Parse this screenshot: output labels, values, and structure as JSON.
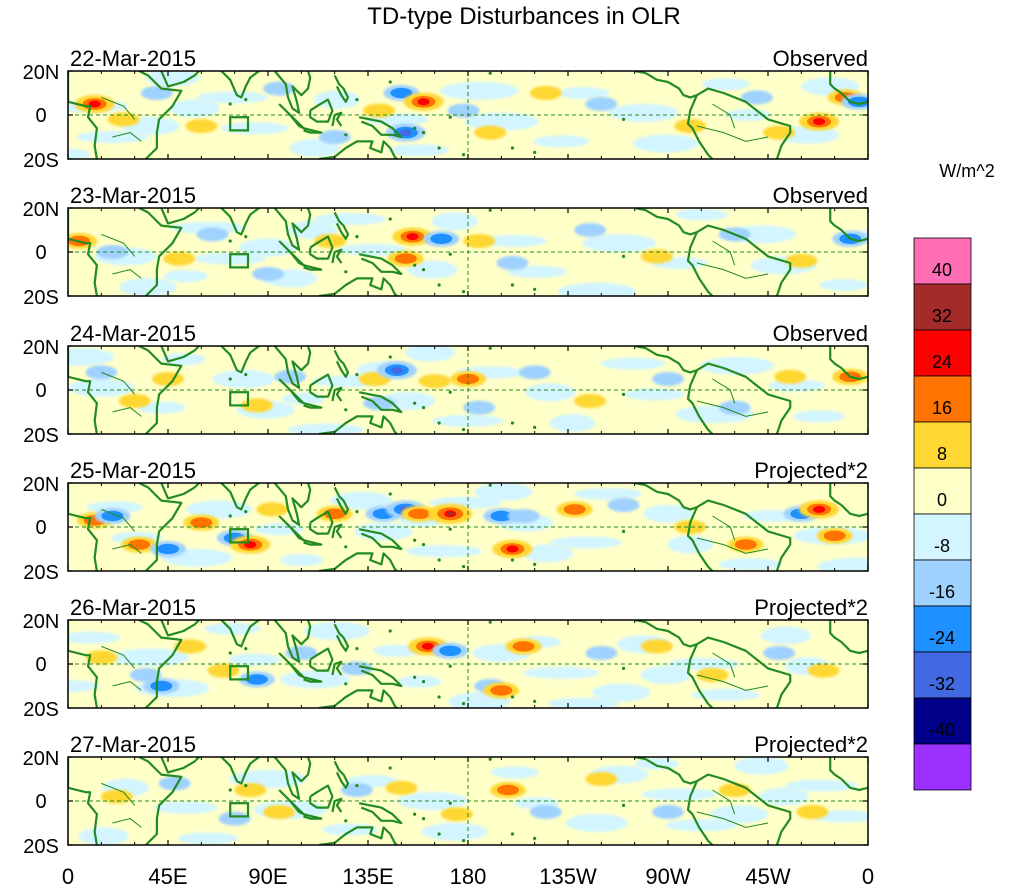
{
  "chart_data": {
    "type": "heatmap",
    "title": "TD-type Disturbances in OLR",
    "colorbar_title": "W/m^2",
    "colorbar_ticks": [
      "40",
      "32",
      "24",
      "16",
      "8",
      "0",
      "-8",
      "-16",
      "-24",
      "-32",
      "-40"
    ],
    "colorbar_levels": [
      {
        "color": "#ff6eb4"
      },
      {
        "color": "#a52a2a"
      },
      {
        "color": "#ff0000"
      },
      {
        "color": "#ff7300"
      },
      {
        "color": "#ffd732"
      },
      {
        "color": "#ffffc8"
      },
      {
        "color": "#d2f5ff"
      },
      {
        "color": "#a0d2ff"
      },
      {
        "color": "#1e90ff"
      },
      {
        "color": "#4169e1"
      },
      {
        "color": "#00008b"
      },
      {
        "color": "#9b30ff"
      }
    ],
    "colors": {
      "land": "#228b22",
      "blob_pos_1": "#ffd732",
      "blob_pos_2": "#ff7300",
      "blob_pos_3": "#ff0000",
      "blob_pos_4": "#a52a2a",
      "blob_neg_1": "#a0d2ff",
      "blob_neg_2": "#1e90ff",
      "blob_neg_3": "#4169e1",
      "blob_neg_4": "#00008b",
      "background_pos": "#ffffc8",
      "background_neg": "#d2f5ff"
    },
    "x_ticks": [
      {
        "label": "0",
        "lon": 0
      },
      {
        "label": "45E",
        "lon": 45
      },
      {
        "label": "90E",
        "lon": 90
      },
      {
        "label": "135E",
        "lon": 135
      },
      {
        "label": "180",
        "lon": 180
      },
      {
        "label": "135W",
        "lon": 225
      },
      {
        "label": "90W",
        "lon": 270
      },
      {
        "label": "45W",
        "lon": 315
      },
      {
        "label": "0",
        "lon": 360
      }
    ],
    "y_ticks": [
      {
        "label": "20N",
        "lat": 20
      },
      {
        "label": "0",
        "lat": 0
      },
      {
        "label": "20S",
        "lat": -20
      }
    ],
    "xlim": [
      0,
      360
    ],
    "ylim": [
      -20,
      20
    ],
    "panels": [
      {
        "date": "22-Mar-2015",
        "label": "Observed",
        "blobs": [
          {
            "lon": 12,
            "lat": 5,
            "v": 3
          },
          {
            "lon": 25,
            "lat": -2,
            "v": 1
          },
          {
            "lon": 40,
            "lat": 10,
            "v": -1
          },
          {
            "lon": 60,
            "lat": -5,
            "v": 1
          },
          {
            "lon": 95,
            "lat": 12,
            "v": -1
          },
          {
            "lon": 120,
            "lat": -10,
            "v": -1
          },
          {
            "lon": 150,
            "lat": 10,
            "v": -2
          },
          {
            "lon": 160,
            "lat": 6,
            "v": 3
          },
          {
            "lon": 152,
            "lat": -8,
            "v": -3
          },
          {
            "lon": 140,
            "lat": 2,
            "v": 1
          },
          {
            "lon": 178,
            "lat": 2,
            "v": -1
          },
          {
            "lon": 190,
            "lat": -8,
            "v": 1
          },
          {
            "lon": 215,
            "lat": 10,
            "v": 1
          },
          {
            "lon": 240,
            "lat": 5,
            "v": -1
          },
          {
            "lon": 280,
            "lat": -5,
            "v": 1
          },
          {
            "lon": 310,
            "lat": 8,
            "v": -1
          },
          {
            "lon": 320,
            "lat": -8,
            "v": 1
          },
          {
            "lon": 338,
            "lat": -3,
            "v": 3
          },
          {
            "lon": 350,
            "lat": 8,
            "v": 2
          },
          {
            "lon": 356,
            "lat": 6,
            "v": -2
          }
        ]
      },
      {
        "date": "23-Mar-2015",
        "label": "Observed",
        "blobs": [
          {
            "lon": 5,
            "lat": 5,
            "v": 2
          },
          {
            "lon": 20,
            "lat": 0,
            "v": -1
          },
          {
            "lon": 50,
            "lat": -3,
            "v": 1
          },
          {
            "lon": 65,
            "lat": 8,
            "v": -1
          },
          {
            "lon": 90,
            "lat": -10,
            "v": -1
          },
          {
            "lon": 118,
            "lat": 5,
            "v": 1
          },
          {
            "lon": 155,
            "lat": 7,
            "v": 3
          },
          {
            "lon": 168,
            "lat": 6,
            "v": -2
          },
          {
            "lon": 152,
            "lat": -3,
            "v": 2
          },
          {
            "lon": 185,
            "lat": 5,
            "v": 1
          },
          {
            "lon": 200,
            "lat": -5,
            "v": -1
          },
          {
            "lon": 235,
            "lat": 10,
            "v": -1
          },
          {
            "lon": 265,
            "lat": -2,
            "v": 1
          },
          {
            "lon": 300,
            "lat": 8,
            "v": -1
          },
          {
            "lon": 330,
            "lat": -4,
            "v": 1
          },
          {
            "lon": 352,
            "lat": 6,
            "v": -2
          }
        ]
      },
      {
        "date": "24-Mar-2015",
        "label": "Observed",
        "blobs": [
          {
            "lon": 15,
            "lat": 8,
            "v": -1
          },
          {
            "lon": 30,
            "lat": -5,
            "v": 1
          },
          {
            "lon": 45,
            "lat": 5,
            "v": 1
          },
          {
            "lon": 85,
            "lat": -7,
            "v": 1
          },
          {
            "lon": 100,
            "lat": 6,
            "v": -1
          },
          {
            "lon": 138,
            "lat": 5,
            "v": 1
          },
          {
            "lon": 140,
            "lat": -6,
            "v": -1
          },
          {
            "lon": 148,
            "lat": 9,
            "v": -3
          },
          {
            "lon": 165,
            "lat": 4,
            "v": 1
          },
          {
            "lon": 180,
            "lat": 5,
            "v": 2
          },
          {
            "lon": 185,
            "lat": -8,
            "v": -1
          },
          {
            "lon": 210,
            "lat": 8,
            "v": -1
          },
          {
            "lon": 235,
            "lat": -5,
            "v": 1
          },
          {
            "lon": 270,
            "lat": 5,
            "v": -1
          },
          {
            "lon": 300,
            "lat": -8,
            "v": -1
          },
          {
            "lon": 325,
            "lat": 6,
            "v": 1
          },
          {
            "lon": 352,
            "lat": 6,
            "v": 2
          }
        ]
      },
      {
        "date": "25-Mar-2015",
        "label": "Projected*2",
        "blobs": [
          {
            "lon": 12,
            "lat": 3,
            "v": 2
          },
          {
            "lon": 20,
            "lat": 5,
            "v": -2
          },
          {
            "lon": 32,
            "lat": -8,
            "v": 2
          },
          {
            "lon": 45,
            "lat": -10,
            "v": -2
          },
          {
            "lon": 60,
            "lat": 2,
            "v": 2
          },
          {
            "lon": 75,
            "lat": -5,
            "v": -2
          },
          {
            "lon": 82,
            "lat": -8,
            "v": 3
          },
          {
            "lon": 92,
            "lat": 8,
            "v": 1
          },
          {
            "lon": 120,
            "lat": 6,
            "v": 2
          },
          {
            "lon": 142,
            "lat": 6,
            "v": -2
          },
          {
            "lon": 152,
            "lat": 8,
            "v": -3
          },
          {
            "lon": 158,
            "lat": 6,
            "v": 2
          },
          {
            "lon": 172,
            "lat": 6,
            "v": 4
          },
          {
            "lon": 195,
            "lat": 5,
            "v": -2
          },
          {
            "lon": 200,
            "lat": -10,
            "v": 3
          },
          {
            "lon": 205,
            "lat": 5,
            "v": -1
          },
          {
            "lon": 228,
            "lat": 8,
            "v": 2
          },
          {
            "lon": 250,
            "lat": 10,
            "v": -1
          },
          {
            "lon": 280,
            "lat": 0,
            "v": 1
          },
          {
            "lon": 305,
            "lat": -8,
            "v": 2
          },
          {
            "lon": 330,
            "lat": 6,
            "v": -2
          },
          {
            "lon": 338,
            "lat": 8,
            "v": 3
          },
          {
            "lon": 345,
            "lat": -4,
            "v": 2
          }
        ]
      },
      {
        "date": "26-Mar-2015",
        "label": "Projected*2",
        "blobs": [
          {
            "lon": 15,
            "lat": 3,
            "v": 1
          },
          {
            "lon": 35,
            "lat": -5,
            "v": -1
          },
          {
            "lon": 42,
            "lat": -10,
            "v": -2
          },
          {
            "lon": 55,
            "lat": 8,
            "v": 1
          },
          {
            "lon": 70,
            "lat": -3,
            "v": 1
          },
          {
            "lon": 85,
            "lat": -7,
            "v": -2
          },
          {
            "lon": 105,
            "lat": 5,
            "v": -1
          },
          {
            "lon": 130,
            "lat": -2,
            "v": -1
          },
          {
            "lon": 162,
            "lat": 8,
            "v": 3
          },
          {
            "lon": 172,
            "lat": 6,
            "v": -2
          },
          {
            "lon": 190,
            "lat": -10,
            "v": -1
          },
          {
            "lon": 195,
            "lat": -12,
            "v": 2
          },
          {
            "lon": 205,
            "lat": 8,
            "v": 2
          },
          {
            "lon": 240,
            "lat": 5,
            "v": -1
          },
          {
            "lon": 265,
            "lat": 8,
            "v": 1
          },
          {
            "lon": 290,
            "lat": -5,
            "v": 1
          },
          {
            "lon": 320,
            "lat": 5,
            "v": -1
          },
          {
            "lon": 340,
            "lat": -3,
            "v": 1
          }
        ]
      },
      {
        "date": "27-Mar-2015",
        "label": "Projected*2",
        "blobs": [
          {
            "lon": 22,
            "lat": 2,
            "v": 1
          },
          {
            "lon": 48,
            "lat": 8,
            "v": -1
          },
          {
            "lon": 75,
            "lat": -8,
            "v": -1
          },
          {
            "lon": 82,
            "lat": 5,
            "v": 1
          },
          {
            "lon": 95,
            "lat": -5,
            "v": 1
          },
          {
            "lon": 130,
            "lat": 5,
            "v": -1
          },
          {
            "lon": 150,
            "lat": 6,
            "v": 1
          },
          {
            "lon": 175,
            "lat": -6,
            "v": 1
          },
          {
            "lon": 198,
            "lat": 5,
            "v": 2
          },
          {
            "lon": 215,
            "lat": -5,
            "v": -1
          },
          {
            "lon": 240,
            "lat": 10,
            "v": 1
          },
          {
            "lon": 270,
            "lat": -5,
            "v": -1
          },
          {
            "lon": 300,
            "lat": 5,
            "v": 1
          },
          {
            "lon": 335,
            "lat": -5,
            "v": 1
          }
        ]
      }
    ]
  }
}
